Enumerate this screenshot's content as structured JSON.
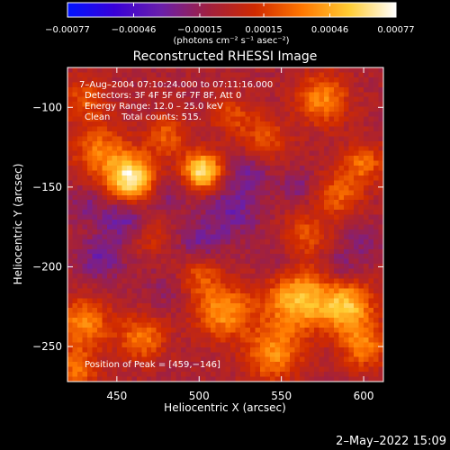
{
  "chart_data": {
    "type": "heatmap",
    "title": "Reconstructed RHESSI Image",
    "xlabel": "Heliocentric X (arcsec)",
    "ylabel": "Heliocentric Y (arcsec)",
    "xlim": [
      420,
      612
    ],
    "ylim": [
      -272,
      -75
    ],
    "x_ticks": [
      450,
      500,
      550,
      600
    ],
    "y_ticks": [
      -100,
      -150,
      -200,
      -250
    ],
    "x_tick_labels": [
      "450",
      "500",
      "550",
      "600"
    ],
    "y_tick_labels": [
      "−100",
      "−150",
      "−200",
      "−250"
    ],
    "colorbar": {
      "range": [
        -0.00077,
        0.00077
      ],
      "tick_values": [
        -0.00077,
        -0.00046,
        -0.00015,
        0.00015,
        0.00046,
        0.00077
      ],
      "tick_labels": [
        "−0.00077",
        "−0.00046",
        "−0.00015",
        "0.00015",
        "0.00046",
        "0.00077"
      ],
      "unit": "(photons cm⁻² s⁻¹ asec⁻²)",
      "colors": [
        "#0014ff",
        "#3800d8",
        "#6a1faa",
        "#a02040",
        "#d02a00",
        "#ff7700",
        "#ffcc33",
        "#ffffff"
      ]
    },
    "info_lines": [
      "7–Aug–2004 07:10:24.000 to 07:11:16.000",
      "Detectors: 3F 4F 5F 6F 7F 8F, Att 0",
      "Energy Range: 12.0 – 25.0 keV",
      "Clean    Total counts: 515."
    ],
    "peak_label": "Position of Peak = [459,−146]",
    "peak": [
      459,
      -146
    ],
    "blobs": [
      {
        "x": 459,
        "y": -145,
        "s": 10,
        "a": 1.0
      },
      {
        "x": 502,
        "y": -140,
        "s": 8,
        "a": 0.95
      },
      {
        "x": 440,
        "y": -128,
        "s": 12,
        "a": 0.5
      },
      {
        "x": 480,
        "y": -118,
        "s": 9,
        "a": 0.4
      },
      {
        "x": 540,
        "y": -120,
        "s": 10,
        "a": 0.35
      },
      {
        "x": 575,
        "y": -95,
        "s": 11,
        "a": 0.55
      },
      {
        "x": 600,
        "y": -135,
        "s": 9,
        "a": 0.45
      },
      {
        "x": 585,
        "y": -155,
        "s": 10,
        "a": 0.4
      },
      {
        "x": 520,
        "y": -105,
        "s": 9,
        "a": 0.3
      },
      {
        "x": 430,
        "y": -95,
        "s": 10,
        "a": 0.35
      },
      {
        "x": 560,
        "y": -220,
        "s": 14,
        "a": 0.8
      },
      {
        "x": 590,
        "y": -225,
        "s": 11,
        "a": 0.75
      },
      {
        "x": 515,
        "y": -228,
        "s": 12,
        "a": 0.6
      },
      {
        "x": 430,
        "y": -235,
        "s": 11,
        "a": 0.55
      },
      {
        "x": 465,
        "y": -245,
        "s": 10,
        "a": 0.5
      },
      {
        "x": 545,
        "y": -255,
        "s": 12,
        "a": 0.55
      },
      {
        "x": 600,
        "y": -250,
        "s": 10,
        "a": 0.5
      },
      {
        "x": 425,
        "y": -265,
        "s": 10,
        "a": 0.45
      },
      {
        "x": 500,
        "y": -205,
        "s": 9,
        "a": 0.35
      },
      {
        "x": 565,
        "y": -180,
        "s": 10,
        "a": 0.35
      },
      {
        "x": 470,
        "y": -180,
        "s": 9,
        "a": 0.25
      },
      {
        "x": 440,
        "y": -195,
        "s": 10,
        "a": -0.3
      },
      {
        "x": 455,
        "y": -170,
        "s": 10,
        "a": -0.35
      },
      {
        "x": 520,
        "y": -165,
        "s": 12,
        "a": -0.3
      },
      {
        "x": 500,
        "y": -185,
        "s": 10,
        "a": -0.25
      },
      {
        "x": 550,
        "y": -200,
        "s": 11,
        "a": -0.2
      },
      {
        "x": 585,
        "y": -200,
        "s": 9,
        "a": -0.2
      },
      {
        "x": 530,
        "y": -140,
        "s": 9,
        "a": -0.25
      },
      {
        "x": 480,
        "y": -155,
        "s": 8,
        "a": -0.2
      },
      {
        "x": 560,
        "y": -150,
        "s": 8,
        "a": -0.2
      },
      {
        "x": 430,
        "y": -160,
        "s": 9,
        "a": -0.2
      },
      {
        "x": 480,
        "y": -215,
        "s": 9,
        "a": -0.15
      },
      {
        "x": 600,
        "y": -185,
        "s": 8,
        "a": -0.18
      }
    ]
  },
  "footer": {
    "timestamp": "2–May–2022 15:09"
  }
}
